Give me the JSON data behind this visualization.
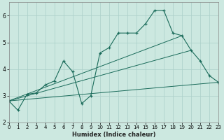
{
  "xlabel": "Humidex (Indice chaleur)",
  "background_color": "#cce8e0",
  "grid_color": "#aacfc8",
  "line_color": "#1a6b5a",
  "xlim": [
    0,
    23
  ],
  "ylim": [
    2,
    6.5
  ],
  "yticks": [
    2,
    3,
    4,
    5,
    6
  ],
  "xticks": [
    0,
    1,
    2,
    3,
    4,
    5,
    6,
    7,
    8,
    9,
    10,
    11,
    12,
    13,
    14,
    15,
    16,
    17,
    18,
    19,
    20,
    21,
    22,
    23
  ],
  "main_x": [
    0,
    1,
    2,
    3,
    4,
    5,
    6,
    7,
    8,
    9,
    10,
    11,
    12,
    13,
    14,
    15,
    16,
    17,
    18,
    19,
    20,
    21,
    22,
    23
  ],
  "main_y": [
    2.8,
    2.45,
    3.05,
    3.1,
    3.4,
    3.55,
    4.3,
    3.9,
    2.7,
    3.0,
    4.6,
    4.8,
    5.35,
    5.35,
    5.35,
    5.7,
    6.2,
    6.2,
    5.35,
    5.25,
    4.7,
    4.3,
    3.75,
    3.5
  ],
  "trend_lines": [
    {
      "x": [
        0,
        23
      ],
      "y": [
        2.8,
        3.5
      ]
    },
    {
      "x": [
        0,
        20
      ],
      "y": [
        2.8,
        4.7
      ]
    },
    {
      "x": [
        0,
        19
      ],
      "y": [
        2.8,
        5.25
      ]
    }
  ]
}
